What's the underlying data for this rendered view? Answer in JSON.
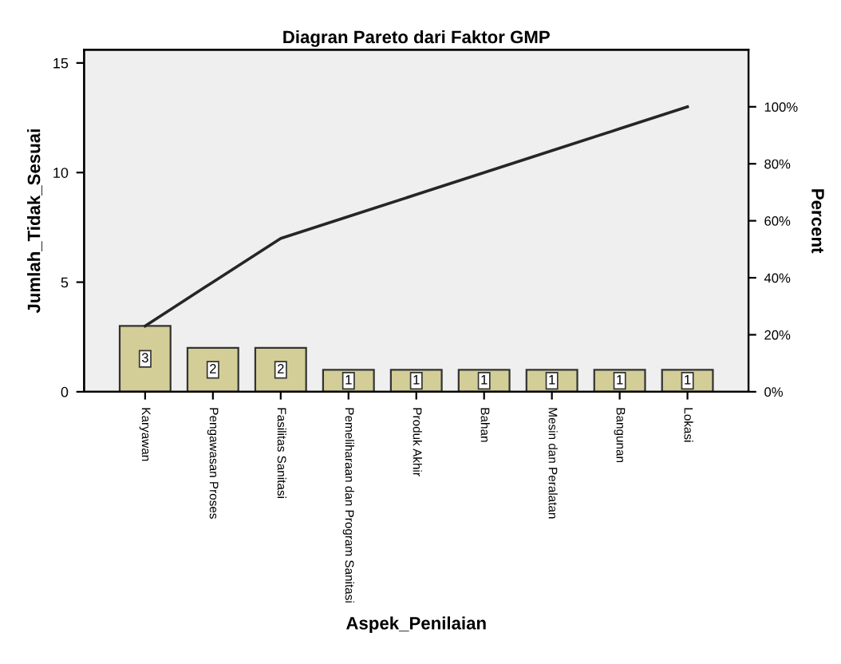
{
  "chart_data": {
    "type": "bar",
    "title": "Diagran Pareto dari Faktor GMP",
    "xlabel": "Aspek_Penilaian",
    "ylabel": "Jumlah_Tidak_Sesuai",
    "y2label": "Percent",
    "categories": [
      "Karyawan",
      "Pengawasan Proses",
      "Fasilitas Sanitasi",
      "Pemeliharaan dan Program Sanitasi",
      "Produk Akhir",
      "Bahan",
      "Mesin dan Peralatan",
      "Bangunan",
      "Lokasi"
    ],
    "series": [
      {
        "color": "#d3ce97",
        "values": [
          3,
          2,
          2,
          1,
          1,
          1,
          1,
          1,
          1
        ],
        "value_labels": [
          "3",
          "2",
          "2",
          "1",
          "1",
          "1",
          "1",
          "1",
          "1"
        ]
      },
      {
        "type": "line",
        "axis": "y2",
        "color": "#262626",
        "values": [
          23.1,
          38.5,
          53.8,
          61.5,
          69.2,
          76.9,
          84.6,
          92.3,
          100
        ]
      }
    ],
    "ylim": [
      0,
      15.6
    ],
    "yticks": [
      0,
      5,
      10,
      15
    ],
    "y2lim": [
      0,
      120
    ],
    "y2ticks": [
      {
        "value": 0,
        "label": "0%"
      },
      {
        "value": 20,
        "label": "20%"
      },
      {
        "value": 40,
        "label": "40%"
      },
      {
        "value": 60,
        "label": "60%"
      },
      {
        "value": 80,
        "label": "80%"
      },
      {
        "value": 100,
        "label": "100%"
      }
    ],
    "grid": false,
    "legend": false
  }
}
